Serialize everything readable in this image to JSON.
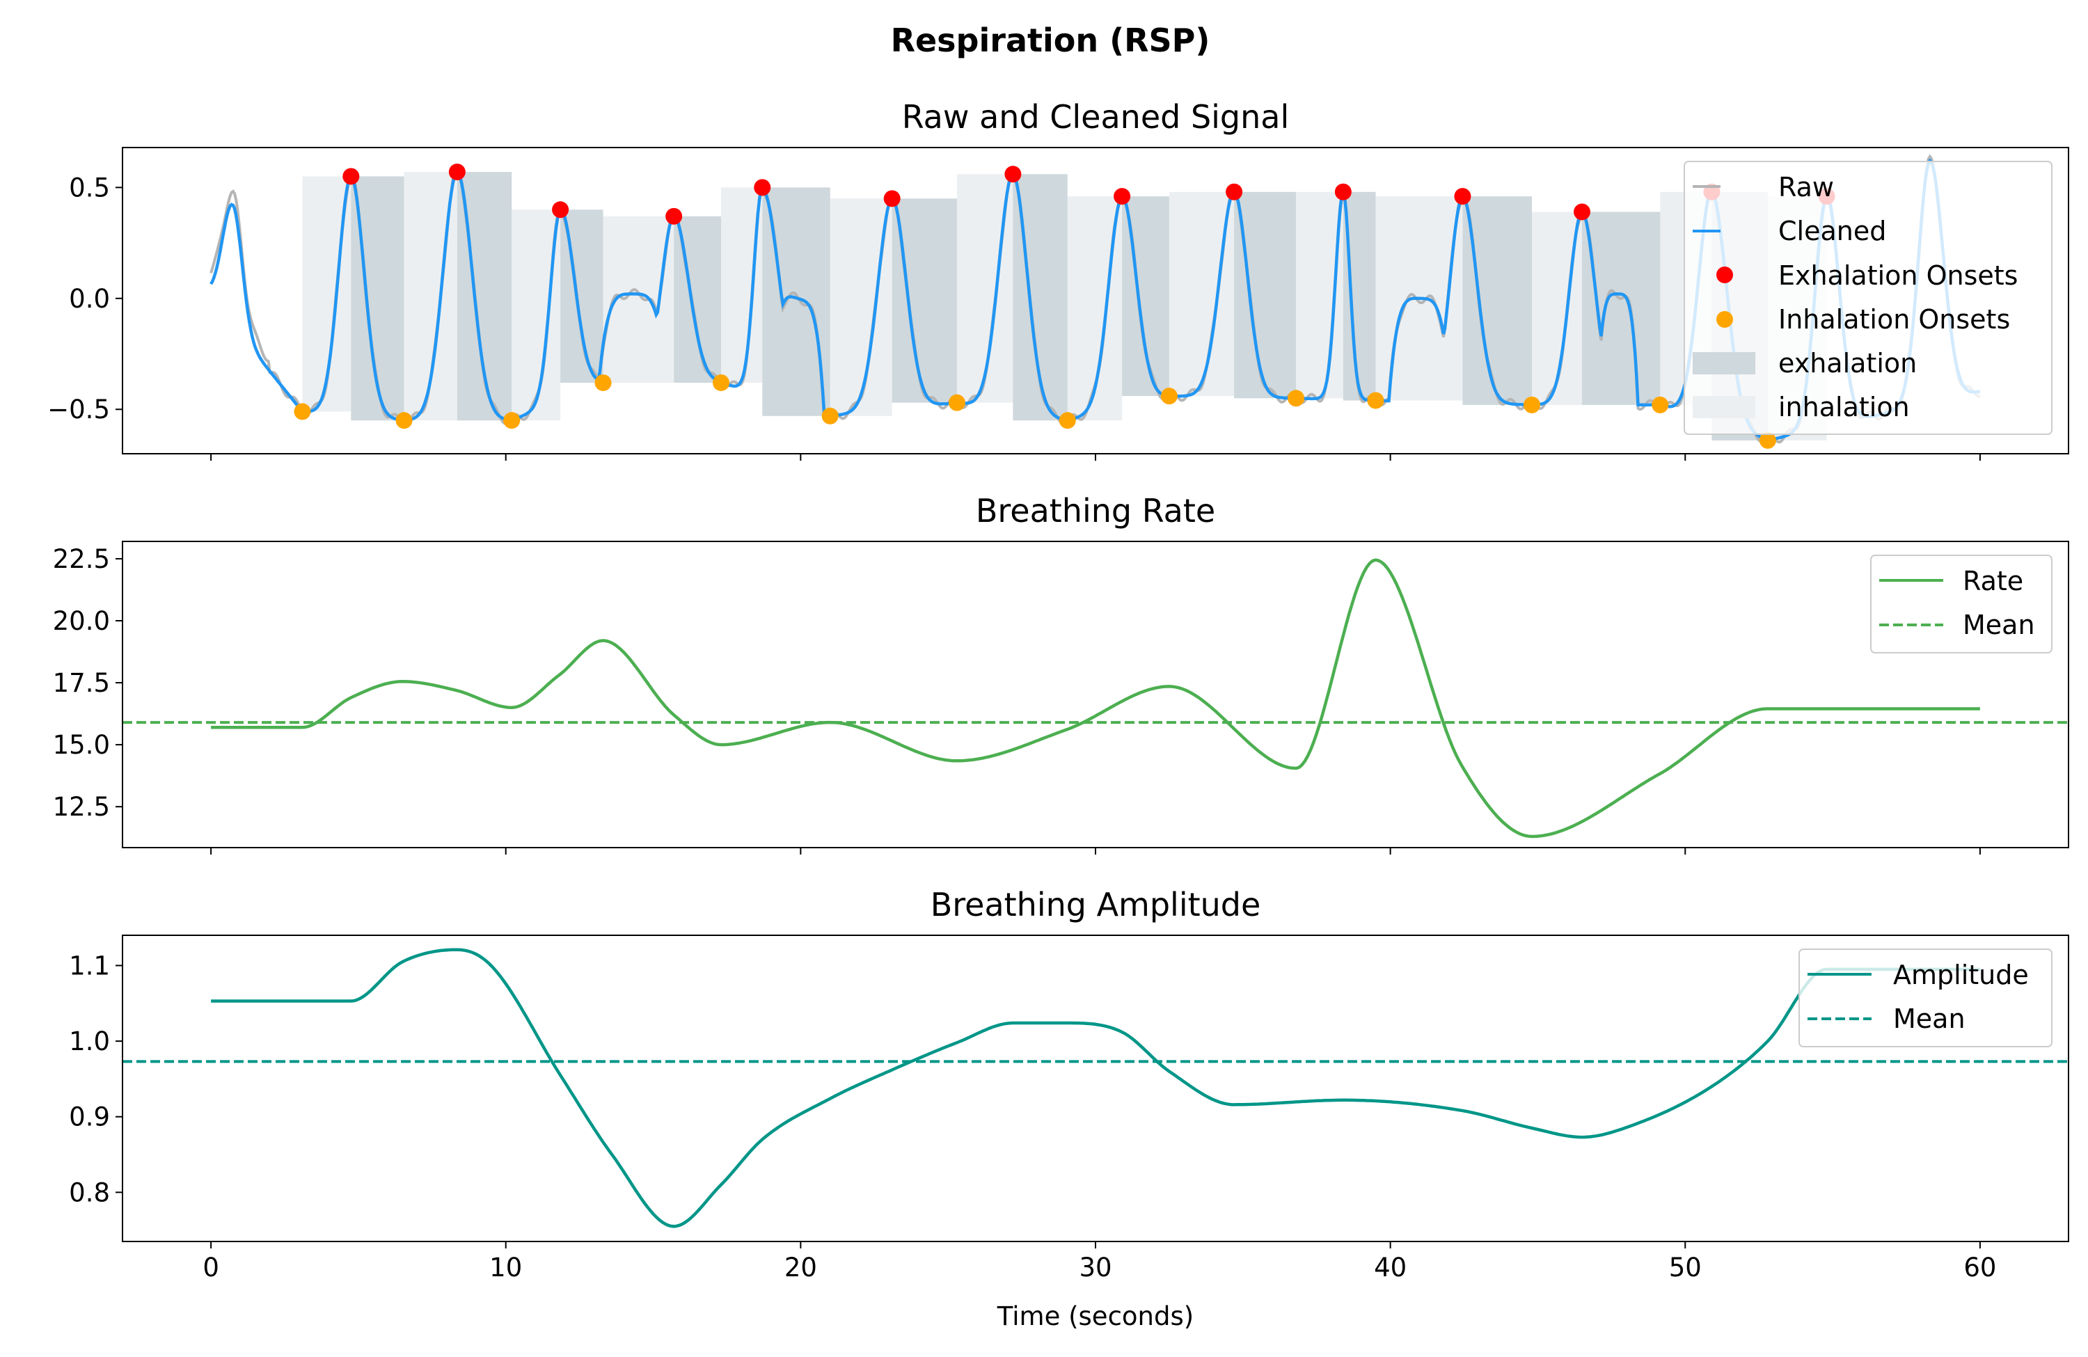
{
  "figure": {
    "suptitle": "Respiration (RSP)",
    "xlabel": "Time (seconds)"
  },
  "colors": {
    "raw": "#b5b5b5",
    "cleaned": "#2196f3",
    "exhalation_onsets": "#ff0000",
    "inhalation_onsets": "#ffa500",
    "exhalation_fill": "#cfd8dc",
    "inhalation_fill": "#eceff1",
    "rate": "#4caf50",
    "amplitude": "#009688"
  },
  "chart_data": [
    {
      "type": "line",
      "title": "Raw and Cleaned Signal",
      "xlim": [
        -3,
        63
      ],
      "ylim": [
        -0.7,
        0.68
      ],
      "xticks": [
        0,
        10,
        20,
        30,
        40,
        50,
        60
      ],
      "yticks": [
        0.5,
        0.0,
        -0.5
      ],
      "ytick_labels": [
        "0.5",
        "0.0",
        "−0.5"
      ],
      "legend": {
        "location": "upper right",
        "entries": [
          "Raw",
          "Cleaned",
          "Exhalation Onsets",
          "Inhalation Onsets",
          "exhalation",
          "inhalation"
        ]
      },
      "exhalation_onsets": [
        [
          4.75,
          0.55
        ],
        [
          8.35,
          0.57
        ],
        [
          11.85,
          0.4
        ],
        [
          15.7,
          0.37
        ],
        [
          18.7,
          0.5
        ],
        [
          23.1,
          0.45
        ],
        [
          27.2,
          0.56
        ],
        [
          30.9,
          0.46
        ],
        [
          34.7,
          0.48
        ],
        [
          38.4,
          0.48
        ],
        [
          42.45,
          0.46
        ],
        [
          46.5,
          0.39
        ],
        [
          50.9,
          0.48
        ],
        [
          54.8,
          0.46
        ]
      ],
      "inhalation_onsets": [
        [
          3.1,
          -0.51
        ],
        [
          6.55,
          -0.55
        ],
        [
          10.2,
          -0.55
        ],
        [
          13.3,
          -0.38
        ],
        [
          17.3,
          -0.38
        ],
        [
          21.0,
          -0.53
        ],
        [
          25.3,
          -0.47
        ],
        [
          29.05,
          -0.55
        ],
        [
          32.5,
          -0.44
        ],
        [
          36.8,
          -0.45
        ],
        [
          39.5,
          -0.46
        ],
        [
          44.8,
          -0.48
        ],
        [
          49.15,
          -0.48
        ],
        [
          52.8,
          -0.64
        ]
      ],
      "cleaned_bumps": [
        [
          0.75,
          0.42,
          0.65,
          0.55
        ],
        [
          11.85,
          0.4,
          0.6,
          0.85
        ],
        [
          15.7,
          0.37,
          0.75,
          0.9
        ],
        [
          18.7,
          0.5,
          0.5,
          1.0
        ],
        [
          23.1,
          0.45,
          0.85,
          0.85
        ],
        [
          27.2,
          0.56,
          0.85,
          0.85
        ],
        [
          30.9,
          0.46,
          0.8,
          0.85
        ],
        [
          34.7,
          0.48,
          0.85,
          0.8
        ],
        [
          38.4,
          0.48,
          0.45,
          0.4
        ],
        [
          42.45,
          0.46,
          0.75,
          0.85
        ],
        [
          46.5,
          0.39,
          0.75,
          0.8
        ],
        [
          50.9,
          0.48,
          0.8,
          0.9
        ],
        [
          54.8,
          0.46,
          0.7,
          0.75
        ],
        [
          58.3,
          0.62,
          0.7,
          0.8
        ],
        [
          4.75,
          0.55,
          0.75,
          0.8
        ],
        [
          8.35,
          0.57,
          0.85,
          0.9
        ]
      ],
      "cleaned_plateaus": [
        [
          14.3,
          0.02,
          0.55,
          0.6
        ],
        [
          19.9,
          0.0,
          0.4,
          0.5
        ],
        [
          41.0,
          0.0,
          0.45,
          0.6
        ],
        [
          47.7,
          0.02,
          0.35,
          0.35
        ]
      ]
    },
    {
      "type": "line",
      "title": "Breathing Rate",
      "xlim": [
        -3,
        63
      ],
      "ylim": [
        10.85,
        23.2
      ],
      "xticks": [
        0,
        10,
        20,
        30,
        40,
        50,
        60
      ],
      "yticks": [
        12.5,
        15.0,
        17.5,
        20.0,
        22.5
      ],
      "ytick_labels": [
        "12.5",
        "15.0",
        "17.5",
        "20.0",
        "22.5"
      ],
      "legend": {
        "location": "upper right",
        "entries": [
          "Rate",
          "Mean"
        ]
      },
      "mean": 15.9,
      "series": [
        {
          "name": "Rate",
          "x": [
            0,
            3.1,
            4.75,
            6.5,
            8.3,
            10.2,
            11.8,
            13.3,
            15.7,
            17.3,
            21.0,
            25.3,
            29.0,
            32.5,
            36.8,
            39.5,
            42.4,
            44.8,
            49.1,
            52.8,
            60
          ],
          "y": [
            15.7,
            15.7,
            16.9,
            17.55,
            17.2,
            16.5,
            17.8,
            19.2,
            16.2,
            15.0,
            15.9,
            14.35,
            15.6,
            17.35,
            14.05,
            22.45,
            14.2,
            11.3,
            13.8,
            16.45,
            16.45
          ]
        }
      ]
    },
    {
      "type": "line",
      "title": "Breathing Amplitude",
      "xlim": [
        -3,
        63
      ],
      "ylim": [
        0.735,
        1.14
      ],
      "xticks": [
        0,
        10,
        20,
        30,
        40,
        50,
        60
      ],
      "xtick_labels": [
        "0",
        "10",
        "20",
        "30",
        "40",
        "50",
        "60"
      ],
      "yticks": [
        0.8,
        0.9,
        1.0,
        1.1
      ],
      "ytick_labels": [
        "0.8",
        "0.9",
        "1.0",
        "1.1"
      ],
      "legend": {
        "location": "upper right",
        "entries": [
          "Amplitude",
          "Mean"
        ]
      },
      "mean": 0.973,
      "series": [
        {
          "name": "Amplitude",
          "x": [
            0,
            4.75,
            6.5,
            8.35,
            9.5,
            11.85,
            13.6,
            15.7,
            17.3,
            18.7,
            21.0,
            23.1,
            25.3,
            27.2,
            29.0,
            30.9,
            32.5,
            34.7,
            38.4,
            42.45,
            44.8,
            46.5,
            48.3,
            50.9,
            52.8,
            54.8,
            60
          ],
          "y": [
            1.053,
            1.053,
            1.105,
            1.121,
            1.1,
            0.955,
            0.85,
            0.755,
            0.81,
            0.87,
            0.924,
            0.962,
            0.998,
            1.024,
            1.024,
            1.012,
            0.96,
            0.916,
            0.922,
            0.908,
            0.885,
            0.873,
            0.89,
            0.94,
            1.0,
            1.095,
            1.095
          ]
        }
      ]
    }
  ]
}
